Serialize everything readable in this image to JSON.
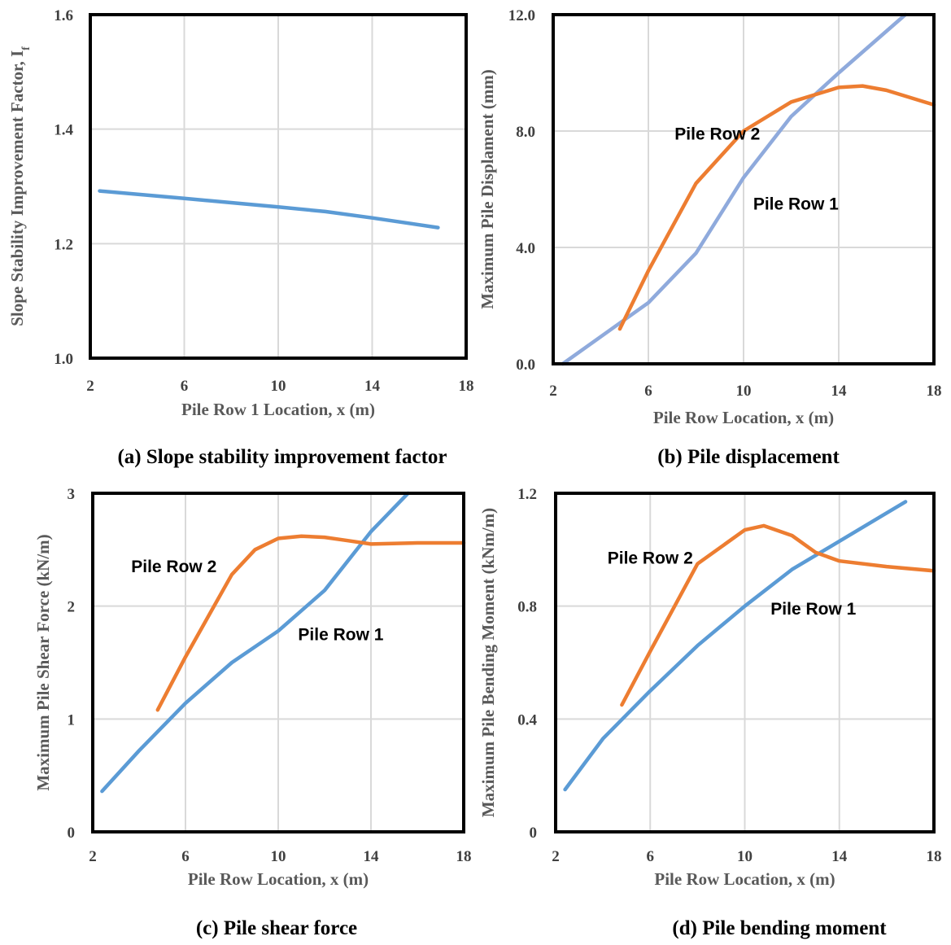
{
  "captions": {
    "a": "(a)  Slope stability improvement factor",
    "b": "(b) Pile displacement",
    "c": "(c) Pile shear force",
    "d": "(d) Pile bending moment"
  },
  "colors": {
    "row1": "#5b9bd5",
    "row1_b": "#8faadc",
    "row2": "#ed7d31",
    "grid": "#d9d9d9",
    "frame": "#000000"
  },
  "chart_data": [
    {
      "id": "a",
      "type": "line",
      "xlabel": "Pile Row 1 Location, x (m)",
      "ylabel": "Slope Stability  Improvement Factor, I",
      "ylabel_sub": "f",
      "xlim": [
        2,
        18
      ],
      "ylim": [
        1.0,
        1.6
      ],
      "xticks": [
        "2",
        "6",
        "10",
        "14",
        "18"
      ],
      "yticks": [
        "1.0",
        "1.2",
        "1.4",
        "1.6"
      ],
      "series": [
        {
          "key": "row1",
          "x": [
            2.4,
            6,
            10,
            12,
            14,
            16.8
          ],
          "y": [
            1.292,
            1.279,
            1.264,
            1.256,
            1.245,
            1.228
          ]
        }
      ]
    },
    {
      "id": "b",
      "type": "line",
      "xlabel": "Pile Row Location, x (m)",
      "ylabel": "Maximum Pile Displament (mm)",
      "xlim": [
        2,
        18
      ],
      "ylim": [
        0,
        12
      ],
      "xticks": [
        "2",
        "6",
        "10",
        "14",
        "18"
      ],
      "yticks": [
        "0.0",
        "4.0",
        "8.0",
        "12.0"
      ],
      "series": [
        {
          "key": "row1_b",
          "name": "Pile Row 1",
          "x": [
            2.4,
            4.8,
            6,
            8,
            10,
            12,
            14,
            16.8
          ],
          "y": [
            0.0,
            1.4,
            2.1,
            3.8,
            6.4,
            8.5,
            10.0,
            12.0
          ]
        },
        {
          "key": "row2",
          "name": "Pile Row 2",
          "x": [
            4.8,
            6,
            8,
            10,
            12,
            14,
            15,
            16,
            18
          ],
          "y": [
            1.2,
            3.2,
            6.2,
            8.0,
            9.0,
            9.5,
            9.55,
            9.4,
            8.9
          ]
        }
      ],
      "labels": [
        {
          "series": "row2",
          "text": "Pile Row 2",
          "x": 8.9,
          "y": 7.7
        },
        {
          "series": "row1_b",
          "text": "Pile Row 1",
          "x": 12.2,
          "y": 5.3
        }
      ]
    },
    {
      "id": "c",
      "type": "line",
      "xlabel": "Pile Row Location, x (m)",
      "ylabel": "Maximum Pile Shear Force (kN/m)",
      "xlim": [
        2,
        18
      ],
      "ylim": [
        0,
        3
      ],
      "xticks": [
        "2",
        "6",
        "10",
        "14",
        "18"
      ],
      "yticks": [
        "0",
        "1",
        "2",
        "3"
      ],
      "series": [
        {
          "key": "row1",
          "name": "Pile Row 1",
          "x": [
            2.4,
            4,
            6,
            8,
            10,
            12,
            14,
            15.6
          ],
          "y": [
            0.36,
            0.72,
            1.14,
            1.5,
            1.78,
            2.14,
            2.66,
            3.0
          ]
        },
        {
          "key": "row2",
          "name": "Pile Row 2",
          "x": [
            4.8,
            6,
            8,
            9,
            10,
            11,
            12,
            13,
            14,
            16,
            18
          ],
          "y": [
            1.08,
            1.55,
            2.28,
            2.5,
            2.6,
            2.62,
            2.61,
            2.58,
            2.55,
            2.56,
            2.56
          ]
        }
      ],
      "labels": [
        {
          "series": "row2",
          "text": "Pile Row 2",
          "x": 5.5,
          "y": 2.3
        },
        {
          "series": "row1",
          "text": "Pile Row 1",
          "x": 12.7,
          "y": 1.7
        }
      ]
    },
    {
      "id": "d",
      "type": "line",
      "xlabel": "Pile Row Location, x (m)",
      "ylabel": "Maximum Pile Bending Moment (kNm/m)",
      "xlim": [
        2,
        18
      ],
      "ylim": [
        0,
        1.2
      ],
      "xticks": [
        "2",
        "6",
        "10",
        "14",
        "18"
      ],
      "yticks": [
        "0",
        "0.4",
        "0.8",
        "1.2"
      ],
      "series": [
        {
          "key": "row1",
          "name": "Pile Row 1",
          "x": [
            2.4,
            4,
            6,
            8,
            10,
            12,
            14,
            16.8
          ],
          "y": [
            0.15,
            0.33,
            0.5,
            0.66,
            0.8,
            0.93,
            1.03,
            1.17
          ]
        },
        {
          "key": "row2",
          "name": "Pile Row 2",
          "x": [
            4.8,
            6,
            8,
            10,
            10.8,
            12,
            13,
            14,
            16,
            18
          ],
          "y": [
            0.45,
            0.64,
            0.95,
            1.07,
            1.085,
            1.05,
            0.99,
            0.96,
            0.94,
            0.925
          ]
        }
      ],
      "labels": [
        {
          "series": "row2",
          "text": "Pile Row 2",
          "x": 6.0,
          "y": 0.95
        },
        {
          "series": "row1",
          "text": "Pile Row 1",
          "x": 12.9,
          "y": 0.77
        }
      ]
    }
  ]
}
